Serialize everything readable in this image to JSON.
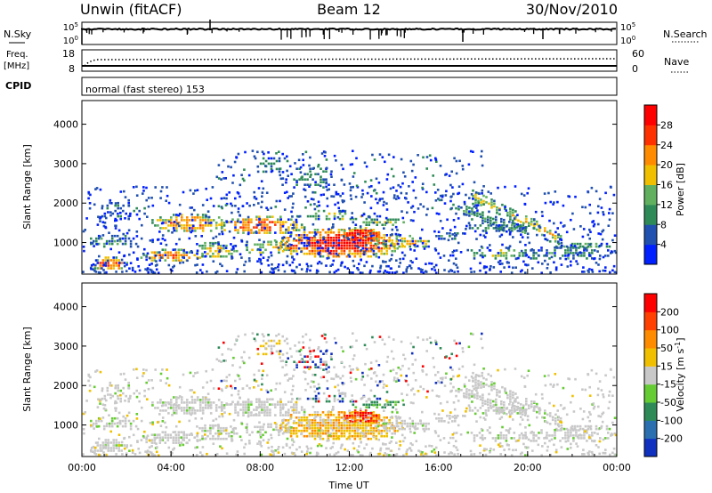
{
  "header": {
    "radar_title": "Unwin (fitACF)",
    "beam": "Beam 12",
    "date": "30/Nov/2010"
  },
  "top_panels": {
    "nsky_label": "N.Sky",
    "nsky_ticks": [
      "10^5",
      "10^0"
    ],
    "nsearch_label": "N.Search",
    "nsearch_ticks": [
      "10^5",
      "10^0"
    ],
    "freq_label": "Freq.",
    "freq_unit": "[MHz]",
    "freq_ticks": [
      "18",
      "8"
    ],
    "nave_label": "Nave",
    "nave_ticks": [
      "60",
      "0"
    ],
    "cpid_label": "CPID",
    "cpid_text": "normal (fast stereo) 153"
  },
  "chart_data": [
    {
      "type": "heatmap",
      "name": "power-panel",
      "ylabel": "Slant Range [km]",
      "xlabel": "",
      "yticks": [
        "1000",
        "2000",
        "3000",
        "4000"
      ],
      "ylim": [
        200,
        4600
      ],
      "xlim": [
        0,
        24
      ],
      "colorbar": {
        "label": "Power [dB]",
        "ticks": [
          "4",
          "8",
          "12",
          "16",
          "20",
          "24",
          "28"
        ],
        "colors": [
          "#0020ff",
          "#2050b0",
          "#2e8b57",
          "#60b060",
          "#f0c000",
          "#ff8c00",
          "#ff3000",
          "#ff0000"
        ]
      }
    },
    {
      "type": "heatmap",
      "name": "velocity-panel",
      "ylabel": "Slant Range [km]",
      "xlabel": "Time UT",
      "yticks": [
        "1000",
        "2000",
        "3000",
        "4000"
      ],
      "xticks": [
        "00:00",
        "04:00",
        "08:00",
        "12:00",
        "16:00",
        "20:00",
        "00:00"
      ],
      "ylim": [
        200,
        4600
      ],
      "xlim": [
        0,
        24
      ],
      "colorbar": {
        "label": "Velocity [m s^-1]",
        "ticks": [
          "200",
          "100",
          "50",
          "15",
          "-15",
          "-50",
          "-100",
          "-200"
        ],
        "colors": [
          "#1030c0",
          "#2a6fb0",
          "#2e8b57",
          "#66cc33",
          "#c8c8c8",
          "#f0c000",
          "#ff8c00",
          "#ff4000",
          "#ff0000"
        ]
      }
    }
  ]
}
